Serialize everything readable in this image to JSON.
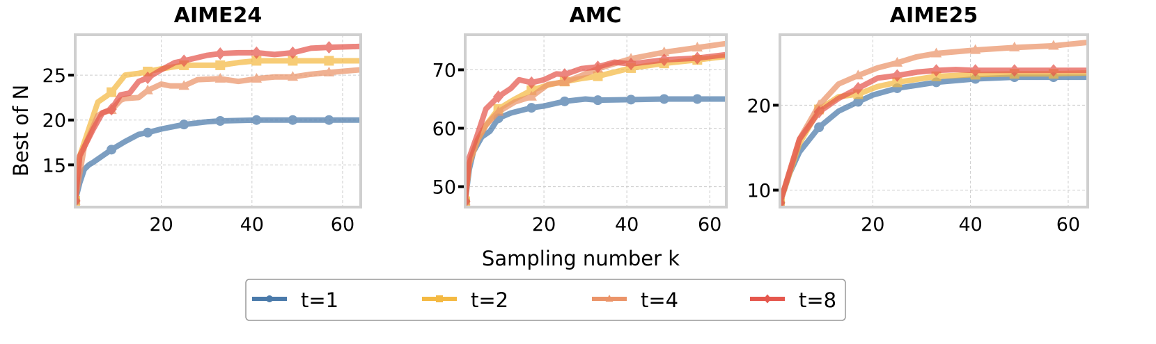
{
  "figure": {
    "ylabel": "Best of N",
    "xlabel": "Sampling number k"
  },
  "legend": {
    "placement": "bottom-center",
    "entries": [
      {
        "label": "t=1",
        "color": "#4a7aaa",
        "marker": "circle"
      },
      {
        "label": "t=2",
        "color": "#f4b942",
        "marker": "square"
      },
      {
        "label": "t=4",
        "color": "#eb9469",
        "marker": "triangle"
      },
      {
        "label": "t=8",
        "color": "#e5574d",
        "marker": "diamond"
      }
    ]
  },
  "chart_data": [
    {
      "type": "line",
      "title": "AIME24",
      "xlabel": "Sampling number k",
      "ylabel": "Best of N",
      "xlim": [
        1,
        64
      ],
      "ylim": [
        10.3,
        29.5
      ],
      "xticks": [
        20,
        40,
        60
      ],
      "yticks": [
        15,
        20,
        25
      ],
      "grid": true,
      "marker_x": [
        1,
        9,
        17,
        25,
        33,
        41,
        49,
        57
      ],
      "series": [
        {
          "name": "t=1",
          "x": [
            1,
            2,
            3,
            4,
            5,
            7,
            9,
            12,
            15,
            17,
            20,
            25,
            30,
            33,
            41,
            49,
            57,
            64
          ],
          "y": [
            11,
            13,
            14.5,
            15,
            15.3,
            16,
            16.7,
            17.6,
            18.4,
            18.6,
            19.0,
            19.5,
            19.8,
            19.9,
            20,
            20,
            20,
            20
          ]
        },
        {
          "name": "t=2",
          "x": [
            1,
            2,
            4,
            6,
            8,
            9,
            12,
            15,
            17,
            20,
            25,
            33,
            37,
            41,
            49,
            57,
            64
          ],
          "y": [
            11,
            16,
            19,
            22,
            22.7,
            23.1,
            25.0,
            25.2,
            25.4,
            25.7,
            26.1,
            26.1,
            26.4,
            26.6,
            26.6,
            26.6,
            26.6
          ]
        },
        {
          "name": "t=4",
          "x": [
            1,
            3,
            6,
            7,
            9,
            11,
            12,
            15,
            17,
            20,
            22,
            25,
            28,
            33,
            37,
            41,
            45,
            49,
            53,
            57,
            64
          ],
          "y": [
            11,
            17,
            20.5,
            20.8,
            21.1,
            22.2,
            22.4,
            22.5,
            23.3,
            24.0,
            23.8,
            23.8,
            24.5,
            24.6,
            24.3,
            24.6,
            24.8,
            24.8,
            25.1,
            25.3,
            25.6
          ]
        },
        {
          "name": "t=8",
          "x": [
            1,
            2,
            5,
            7,
            9,
            11,
            13,
            15,
            17,
            20,
            23,
            25,
            30,
            33,
            37,
            41,
            45,
            49,
            53,
            57,
            64
          ],
          "y": [
            11,
            16,
            19,
            20.8,
            21.2,
            22.8,
            23.0,
            24.3,
            24.7,
            25.6,
            26.4,
            26.6,
            27.2,
            27.4,
            27.5,
            27.5,
            27.3,
            27.5,
            28.0,
            28.1,
            28.2
          ]
        }
      ]
    },
    {
      "type": "line",
      "title": "AMC",
      "xlabel": "Sampling number k",
      "ylabel": "Best of N",
      "xlim": [
        1,
        64
      ],
      "ylim": [
        46.5,
        76
      ],
      "xticks": [
        20,
        40,
        60
      ],
      "yticks": [
        50,
        60,
        70
      ],
      "grid": true,
      "marker_x": [
        1,
        9,
        17,
        25,
        33,
        41,
        49,
        57
      ],
      "series": [
        {
          "name": "t=1",
          "x": [
            1,
            2,
            3,
            5,
            7,
            9,
            12,
            17,
            20,
            25,
            30,
            33,
            41,
            49,
            57,
            64
          ],
          "y": [
            47.5,
            53,
            56,
            58.5,
            59.5,
            61.7,
            62.6,
            63.5,
            63.8,
            64.6,
            65.0,
            64.8,
            64.9,
            65.0,
            65.0,
            65.0
          ]
        },
        {
          "name": "t=2",
          "x": [
            1,
            2,
            4,
            6,
            9,
            13,
            17,
            21,
            25,
            29,
            33,
            41,
            49,
            57,
            64
          ],
          "y": [
            47.5,
            54,
            58,
            60.5,
            63.3,
            65.0,
            66.5,
            67.4,
            68.0,
            68.5,
            68.9,
            70.3,
            71.1,
            71.7,
            72.3
          ]
        },
        {
          "name": "t=4",
          "x": [
            1,
            2,
            4,
            6,
            9,
            13,
            17,
            21,
            25,
            29,
            33,
            41,
            49,
            57,
            64
          ],
          "y": [
            47.5,
            54,
            58,
            60.5,
            62.8,
            64.5,
            65.4,
            67.5,
            67.9,
            69.0,
            70.2,
            71.9,
            73.0,
            73.8,
            74.5
          ]
        },
        {
          "name": "t=8",
          "x": [
            1,
            2,
            4,
            6,
            9,
            12,
            14,
            17,
            20,
            23,
            25,
            29,
            33,
            37,
            41,
            49,
            57,
            64
          ],
          "y": [
            47.5,
            55,
            59,
            63.3,
            65.4,
            66.8,
            68.3,
            67.8,
            68.3,
            69.3,
            69.2,
            70.2,
            70.5,
            71.3,
            71.0,
            71.7,
            72.0,
            72.6
          ]
        }
      ]
    },
    {
      "type": "line",
      "title": "AIME25",
      "xlabel": "Sampling number k",
      "ylabel": "Best of N",
      "xlim": [
        1,
        64
      ],
      "ylim": [
        8,
        28.3
      ],
      "xticks": [
        20,
        40,
        60
      ],
      "yticks": [
        10,
        20
      ],
      "grid": true,
      "marker_x": [
        1,
        9,
        17,
        25,
        33,
        41,
        49,
        57
      ],
      "series": [
        {
          "name": "t=1",
          "x": [
            1,
            3,
            5,
            9,
            13,
            17,
            20,
            25,
            33,
            41,
            49,
            57,
            64
          ],
          "y": [
            8.5,
            12,
            14.5,
            17.4,
            19.3,
            20.4,
            21.2,
            22.0,
            22.7,
            23.1,
            23.3,
            23.3,
            23.3
          ]
        },
        {
          "name": "t=2",
          "x": [
            1,
            5,
            9,
            13,
            17,
            21,
            25,
            33,
            41,
            49,
            57,
            64
          ],
          "y": [
            8.5,
            15.5,
            19.5,
            21.0,
            21.3,
            22.2,
            22.7,
            23.4,
            23.6,
            23.7,
            23.7,
            23.8
          ]
        },
        {
          "name": "t=4",
          "x": [
            1,
            5,
            9,
            13,
            17,
            21,
            25,
            29,
            33,
            41,
            49,
            57,
            64
          ],
          "y": [
            8.5,
            16,
            20.0,
            22.5,
            23.5,
            24.4,
            25.0,
            25.7,
            26.1,
            26.5,
            26.8,
            27.0,
            27.4
          ]
        },
        {
          "name": "t=8",
          "x": [
            1,
            5,
            9,
            13,
            17,
            21,
            25,
            29,
            33,
            37,
            41,
            49,
            57,
            64
          ],
          "y": [
            8.5,
            16,
            19.2,
            20.8,
            22.0,
            23.2,
            23.5,
            23.9,
            24.1,
            24.2,
            24.1,
            24.1,
            24.1,
            24.1
          ]
        }
      ]
    }
  ]
}
